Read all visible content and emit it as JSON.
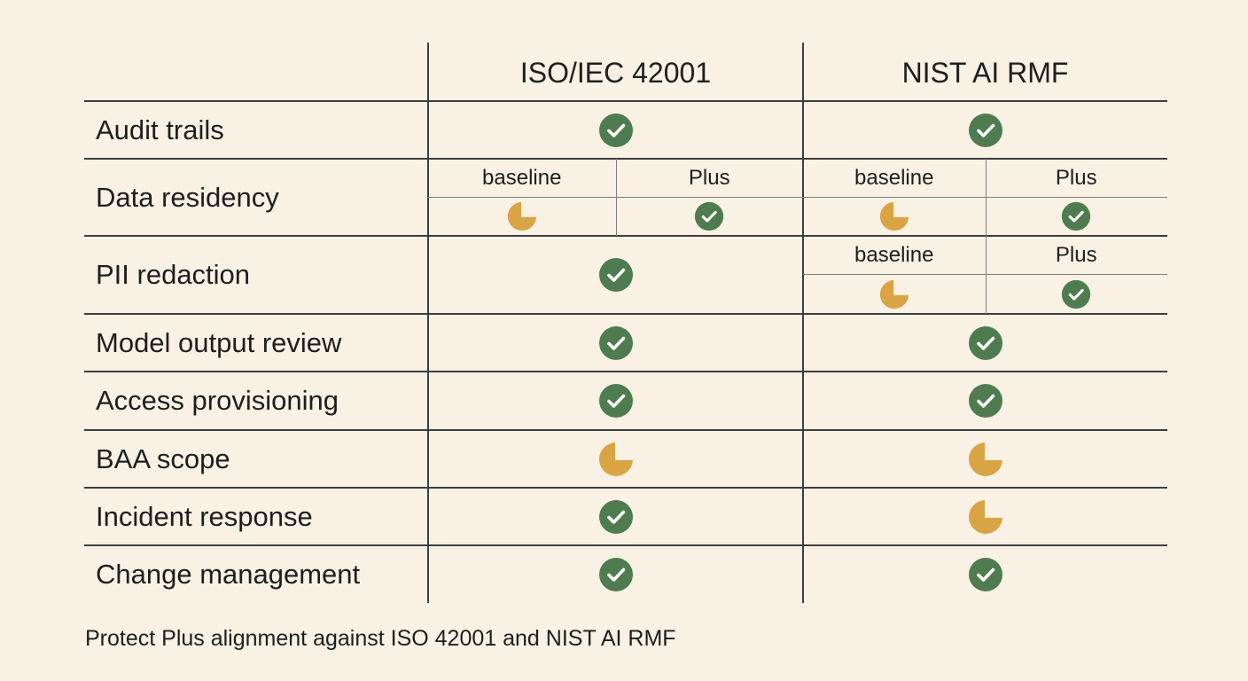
{
  "colors": {
    "background": "#f8f1e4",
    "full": "#4e7c4f",
    "partial": "#d9a443",
    "text": "#1d1f1e",
    "rule": "#3c3f3e"
  },
  "icons": {
    "full": "check-circle-icon",
    "partial": "partial-pie-icon"
  },
  "table": {
    "columns": [
      "ISO/IEC 42001",
      "NIST AI RMF"
    ],
    "sub_columns": [
      "baseline",
      "Plus"
    ],
    "rows": [
      {
        "label": "Audit trails",
        "cells": [
          [
            "full"
          ],
          [
            "full"
          ]
        ]
      },
      {
        "label": "Data residency",
        "cells": [
          [
            "partial",
            "full"
          ],
          [
            "partial",
            "full"
          ]
        ]
      },
      {
        "label": "PII redaction",
        "cells": [
          [
            "full"
          ],
          [
            "partial",
            "full"
          ]
        ]
      },
      {
        "label": "Model output review",
        "cells": [
          [
            "full"
          ],
          [
            "full"
          ]
        ]
      },
      {
        "label": "Access provisioning",
        "cells": [
          [
            "full"
          ],
          [
            "full"
          ]
        ]
      },
      {
        "label": "BAA scope",
        "cells": [
          [
            "partial"
          ],
          [
            "partial"
          ]
        ]
      },
      {
        "label": "Incident response",
        "cells": [
          [
            "full"
          ],
          [
            "partial"
          ]
        ]
      },
      {
        "label": "Change management",
        "cells": [
          [
            "full"
          ],
          [
            "full"
          ]
        ]
      }
    ]
  },
  "caption": "Protect Plus alignment against ISO 42001 and NIST AI RMF"
}
